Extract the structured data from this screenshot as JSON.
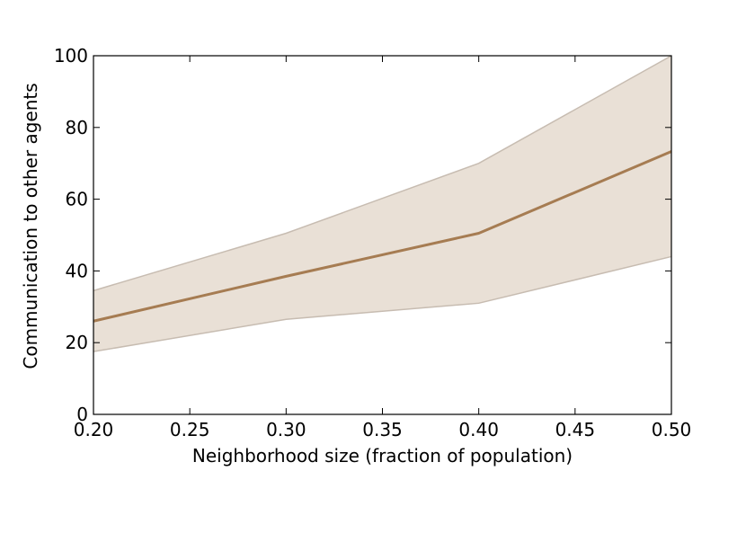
{
  "chart_data": {
    "type": "line",
    "title": "",
    "xlabel": "Neighborhood size (fraction of population)",
    "ylabel": "Communication to other agents",
    "xlim": [
      0.2,
      0.5
    ],
    "ylim": [
      0,
      100
    ],
    "xticks": [
      0.2,
      0.25,
      0.3,
      0.35,
      0.4,
      0.45,
      0.5
    ],
    "xtick_labels": [
      "0.20",
      "0.25",
      "0.30",
      "0.35",
      "0.40",
      "0.45",
      "0.50"
    ],
    "yticks": [
      0,
      20,
      40,
      60,
      80,
      100
    ],
    "ytick_labels": [
      "0",
      "20",
      "40",
      "60",
      "80",
      "100"
    ],
    "grid": false,
    "series": [
      {
        "x": [
          0.2,
          0.3,
          0.4,
          0.5
        ],
        "mean": [
          26,
          38.5,
          50.5,
          73.3
        ],
        "upper": [
          34.5,
          50.5,
          70,
          100
        ],
        "lower": [
          17.5,
          26.5,
          31,
          44
        ],
        "line_color": "#a67c52",
        "band_color": "#e9e0d6",
        "band_edge_color": "#c7bcb1"
      }
    ]
  }
}
